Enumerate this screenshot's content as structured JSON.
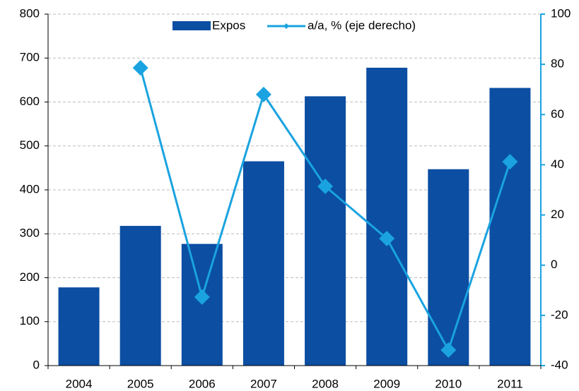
{
  "chart_data": {
    "type": "bar_line",
    "categories": [
      "2004",
      "2005",
      "2006",
      "2007",
      "2008",
      "2009",
      "2010",
      "2011"
    ],
    "series": [
      {
        "name": "Expos",
        "type": "bar",
        "color": "#0b4ea2",
        "values": [
          178,
          318,
          277,
          465,
          613,
          678,
          447,
          632
        ]
      },
      {
        "name": "a/a, % (eje derecho)",
        "type": "line",
        "axis": "y2",
        "color": "#1aa3e0",
        "values": [
          null,
          78.6,
          -12.7,
          68,
          31.4,
          10.6,
          -33.8,
          41.2
        ]
      }
    ],
    "ylim": [
      0,
      800
    ],
    "yticks": [
      0,
      100,
      200,
      300,
      400,
      500,
      600,
      700,
      800
    ],
    "y2lim": [
      -40,
      100
    ],
    "y2ticks": [
      -40,
      -20,
      0,
      20,
      40,
      60,
      80,
      100
    ],
    "grid": true,
    "legend": "top"
  }
}
